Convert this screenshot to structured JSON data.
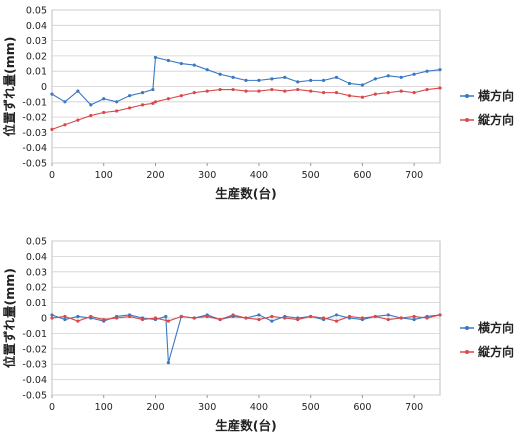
{
  "chart_data": [
    {
      "type": "line",
      "xlabel": "生産数(台)",
      "ylabel": "位置ずれ量(mm)",
      "xlim": [
        0,
        750
      ],
      "ylim": [
        -0.05,
        0.05
      ],
      "x_ticks": [
        "0",
        "100",
        "200",
        "300",
        "400",
        "500",
        "600",
        "700"
      ],
      "y_ticks": [
        "0.05",
        "0.04",
        "0.03",
        "0.02",
        "0.01",
        "0",
        "-0.01",
        "-0.02",
        "-0.03",
        "-0.04",
        "-0.05"
      ],
      "grid": true,
      "legend_position": "right",
      "series": [
        {
          "name": "横方向",
          "color": "#3a78c2",
          "x": [
            0,
            25,
            50,
            75,
            100,
            125,
            150,
            175,
            195,
            200,
            225,
            250,
            275,
            300,
            325,
            350,
            375,
            400,
            425,
            450,
            475,
            500,
            525,
            550,
            575,
            600,
            625,
            650,
            675,
            700,
            725,
            750
          ],
          "values": [
            -0.005,
            -0.01,
            -0.003,
            -0.012,
            -0.008,
            -0.01,
            -0.006,
            -0.004,
            -0.002,
            0.019,
            0.017,
            0.015,
            0.014,
            0.011,
            0.008,
            0.006,
            0.004,
            0.004,
            0.005,
            0.006,
            0.003,
            0.004,
            0.004,
            0.006,
            0.002,
            0.001,
            0.005,
            0.007,
            0.006,
            0.008,
            0.01,
            0.011
          ]
        },
        {
          "name": "縦方向",
          "color": "#d9484b",
          "x": [
            0,
            25,
            50,
            75,
            100,
            125,
            150,
            175,
            195,
            200,
            225,
            250,
            275,
            300,
            325,
            350,
            375,
            400,
            425,
            450,
            475,
            500,
            525,
            550,
            575,
            600,
            625,
            650,
            675,
            700,
            725,
            750
          ],
          "values": [
            -0.028,
            -0.025,
            -0.022,
            -0.019,
            -0.017,
            -0.016,
            -0.014,
            -0.012,
            -0.011,
            -0.01,
            -0.008,
            -0.006,
            -0.004,
            -0.003,
            -0.002,
            -0.002,
            -0.003,
            -0.003,
            -0.002,
            -0.003,
            -0.002,
            -0.003,
            -0.004,
            -0.004,
            -0.006,
            -0.007,
            -0.005,
            -0.004,
            -0.003,
            -0.004,
            -0.002,
            -0.001
          ]
        }
      ]
    },
    {
      "type": "line",
      "xlabel": "生産数(台)",
      "ylabel": "位置ずれ量(mm)",
      "xlim": [
        0,
        750
      ],
      "ylim": [
        -0.05,
        0.05
      ],
      "x_ticks": [
        "0",
        "100",
        "200",
        "300",
        "400",
        "500",
        "600",
        "700"
      ],
      "y_ticks": [
        "0.05",
        "0.04",
        "0.03",
        "0.02",
        "0.01",
        "0",
        "-0.01",
        "-0.02",
        "-0.03",
        "-0.04",
        "-0.05"
      ],
      "grid": true,
      "legend_position": "right",
      "series": [
        {
          "name": "横方向",
          "color": "#3a78c2",
          "x": [
            0,
            25,
            50,
            75,
            100,
            125,
            150,
            175,
            200,
            220,
            225,
            250,
            275,
            300,
            325,
            350,
            375,
            400,
            425,
            450,
            475,
            500,
            525,
            550,
            575,
            600,
            625,
            650,
            675,
            700,
            725,
            750
          ],
          "values": [
            0.002,
            -0.001,
            0.001,
            0.0,
            -0.002,
            0.001,
            0.002,
            0.0,
            -0.001,
            0.001,
            -0.029,
            0.001,
            0.0,
            0.002,
            -0.001,
            0.001,
            0.0,
            0.002,
            -0.002,
            0.001,
            0.0,
            0.001,
            -0.001,
            0.002,
            0.0,
            -0.001,
            0.001,
            0.002,
            0.0,
            -0.001,
            0.001,
            0.002
          ]
        },
        {
          "name": "縦方向",
          "color": "#d9484b",
          "x": [
            0,
            25,
            50,
            75,
            100,
            125,
            150,
            175,
            200,
            225,
            250,
            275,
            300,
            325,
            350,
            375,
            400,
            425,
            450,
            475,
            500,
            525,
            550,
            575,
            600,
            625,
            650,
            675,
            700,
            725,
            750
          ],
          "values": [
            0.0,
            0.001,
            -0.002,
            0.001,
            -0.001,
            0.0,
            0.001,
            -0.001,
            0.0,
            -0.002,
            0.001,
            0.0,
            0.001,
            -0.001,
            0.002,
            0.0,
            -0.001,
            0.001,
            0.0,
            -0.001,
            0.001,
            0.0,
            -0.002,
            0.001,
            0.0,
            0.001,
            -0.001,
            0.0,
            0.001,
            0.0,
            0.002
          ]
        }
      ]
    }
  ]
}
